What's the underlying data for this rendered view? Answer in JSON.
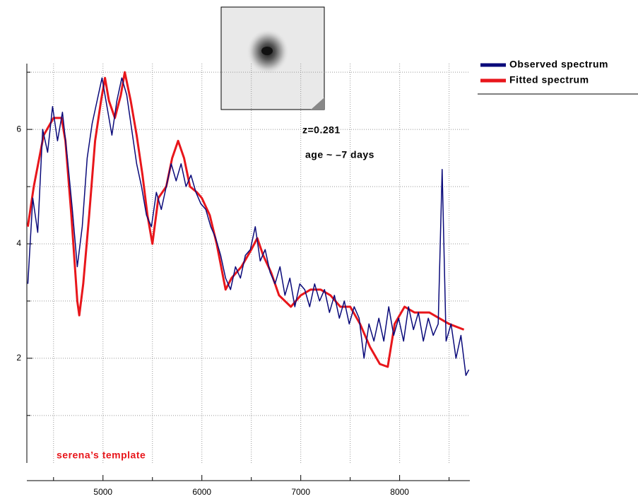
{
  "chart_data": {
    "type": "line",
    "annotations": [
      "z=0.281",
      "age ~ –7 days",
      "serena’s template"
    ],
    "series": [
      {
        "name": "Observed spectrum",
        "color": "#0a0a7a",
        "x": [
          4240,
          4290,
          4340,
          4390,
          4440,
          4490,
          4540,
          4590,
          4640,
          4690,
          4740,
          4790,
          4840,
          4890,
          4940,
          4990,
          5040,
          5090,
          5140,
          5190,
          5240,
          5290,
          5340,
          5390,
          5440,
          5490,
          5540,
          5590,
          5640,
          5690,
          5740,
          5790,
          5840,
          5890,
          5940,
          5990,
          6040,
          6090,
          6140,
          6190,
          6240,
          6290,
          6340,
          6390,
          6440,
          6490,
          6540,
          6590,
          6640,
          6690,
          6740,
          6790,
          6840,
          6890,
          6940,
          6990,
          7040,
          7090,
          7140,
          7190,
          7240,
          7290,
          7340,
          7390,
          7440,
          7490,
          7540,
          7590,
          7640,
          7690,
          7740,
          7790,
          7840,
          7890,
          7940,
          7990,
          8040,
          8090,
          8140,
          8190,
          8240,
          8290,
          8340,
          8390,
          8430,
          8470,
          8520,
          8570,
          8620,
          8670,
          8700
        ],
        "values": [
          3.3,
          4.8,
          4.2,
          6.0,
          5.6,
          6.4,
          5.8,
          6.3,
          5.5,
          4.6,
          3.6,
          4.3,
          5.5,
          6.1,
          6.5,
          6.9,
          6.4,
          5.9,
          6.5,
          6.9,
          6.6,
          6.0,
          5.4,
          5.0,
          4.5,
          4.3,
          4.9,
          4.6,
          5.0,
          5.4,
          5.1,
          5.4,
          5.0,
          5.2,
          4.9,
          4.7,
          4.6,
          4.3,
          4.1,
          3.8,
          3.4,
          3.2,
          3.6,
          3.4,
          3.8,
          3.9,
          4.3,
          3.7,
          3.9,
          3.5,
          3.3,
          3.6,
          3.1,
          3.4,
          2.9,
          3.3,
          3.2,
          2.9,
          3.3,
          3.0,
          3.2,
          2.8,
          3.1,
          2.7,
          3.0,
          2.6,
          2.9,
          2.7,
          2.0,
          2.6,
          2.3,
          2.7,
          2.3,
          2.9,
          2.4,
          2.7,
          2.3,
          2.9,
          2.5,
          2.8,
          2.3,
          2.7,
          2.4,
          2.6,
          5.3,
          2.3,
          2.6,
          2.0,
          2.4,
          1.7,
          1.8
        ]
      },
      {
        "name": "Fitted spectrum",
        "color": "#e8161b",
        "x": [
          4240,
          4300,
          4400,
          4500,
          4580,
          4620,
          4680,
          4740,
          4760,
          4800,
          4860,
          4920,
          4980,
          5020,
          5060,
          5120,
          5180,
          5220,
          5280,
          5340,
          5400,
          5450,
          5500,
          5560,
          5640,
          5700,
          5760,
          5820,
          5880,
          5950,
          6000,
          6080,
          6150,
          6240,
          6300,
          6400,
          6500,
          6560,
          6620,
          6700,
          6780,
          6900,
          7000,
          7100,
          7200,
          7300,
          7400,
          7500,
          7600,
          7700,
          7800,
          7880,
          7950,
          8050,
          8150,
          8300,
          8400,
          8500,
          8650
        ],
        "values": [
          4.3,
          5.0,
          5.9,
          6.2,
          6.2,
          5.8,
          4.5,
          3.0,
          2.75,
          3.3,
          4.5,
          5.8,
          6.5,
          6.9,
          6.5,
          6.2,
          6.6,
          7.0,
          6.5,
          5.9,
          5.2,
          4.5,
          4.0,
          4.8,
          5.0,
          5.5,
          5.8,
          5.5,
          5.0,
          4.9,
          4.8,
          4.5,
          4.0,
          3.2,
          3.4,
          3.6,
          3.9,
          4.1,
          3.8,
          3.5,
          3.1,
          2.9,
          3.1,
          3.2,
          3.2,
          3.1,
          2.9,
          2.9,
          2.6,
          2.2,
          1.9,
          1.85,
          2.6,
          2.9,
          2.8,
          2.8,
          2.7,
          2.6,
          2.5
        ]
      }
    ],
    "xlim": [
      4230,
      8710
    ],
    "ylim": [
      0.17,
      7.15
    ],
    "xticks": [
      5000,
      6000,
      7000,
      8000
    ],
    "xminor": [
      4500,
      5500,
      6500,
      7500,
      8500
    ],
    "yticks": [
      2,
      4,
      6
    ],
    "yminor": [
      1,
      3,
      5,
      7
    ],
    "grid": true
  }
}
